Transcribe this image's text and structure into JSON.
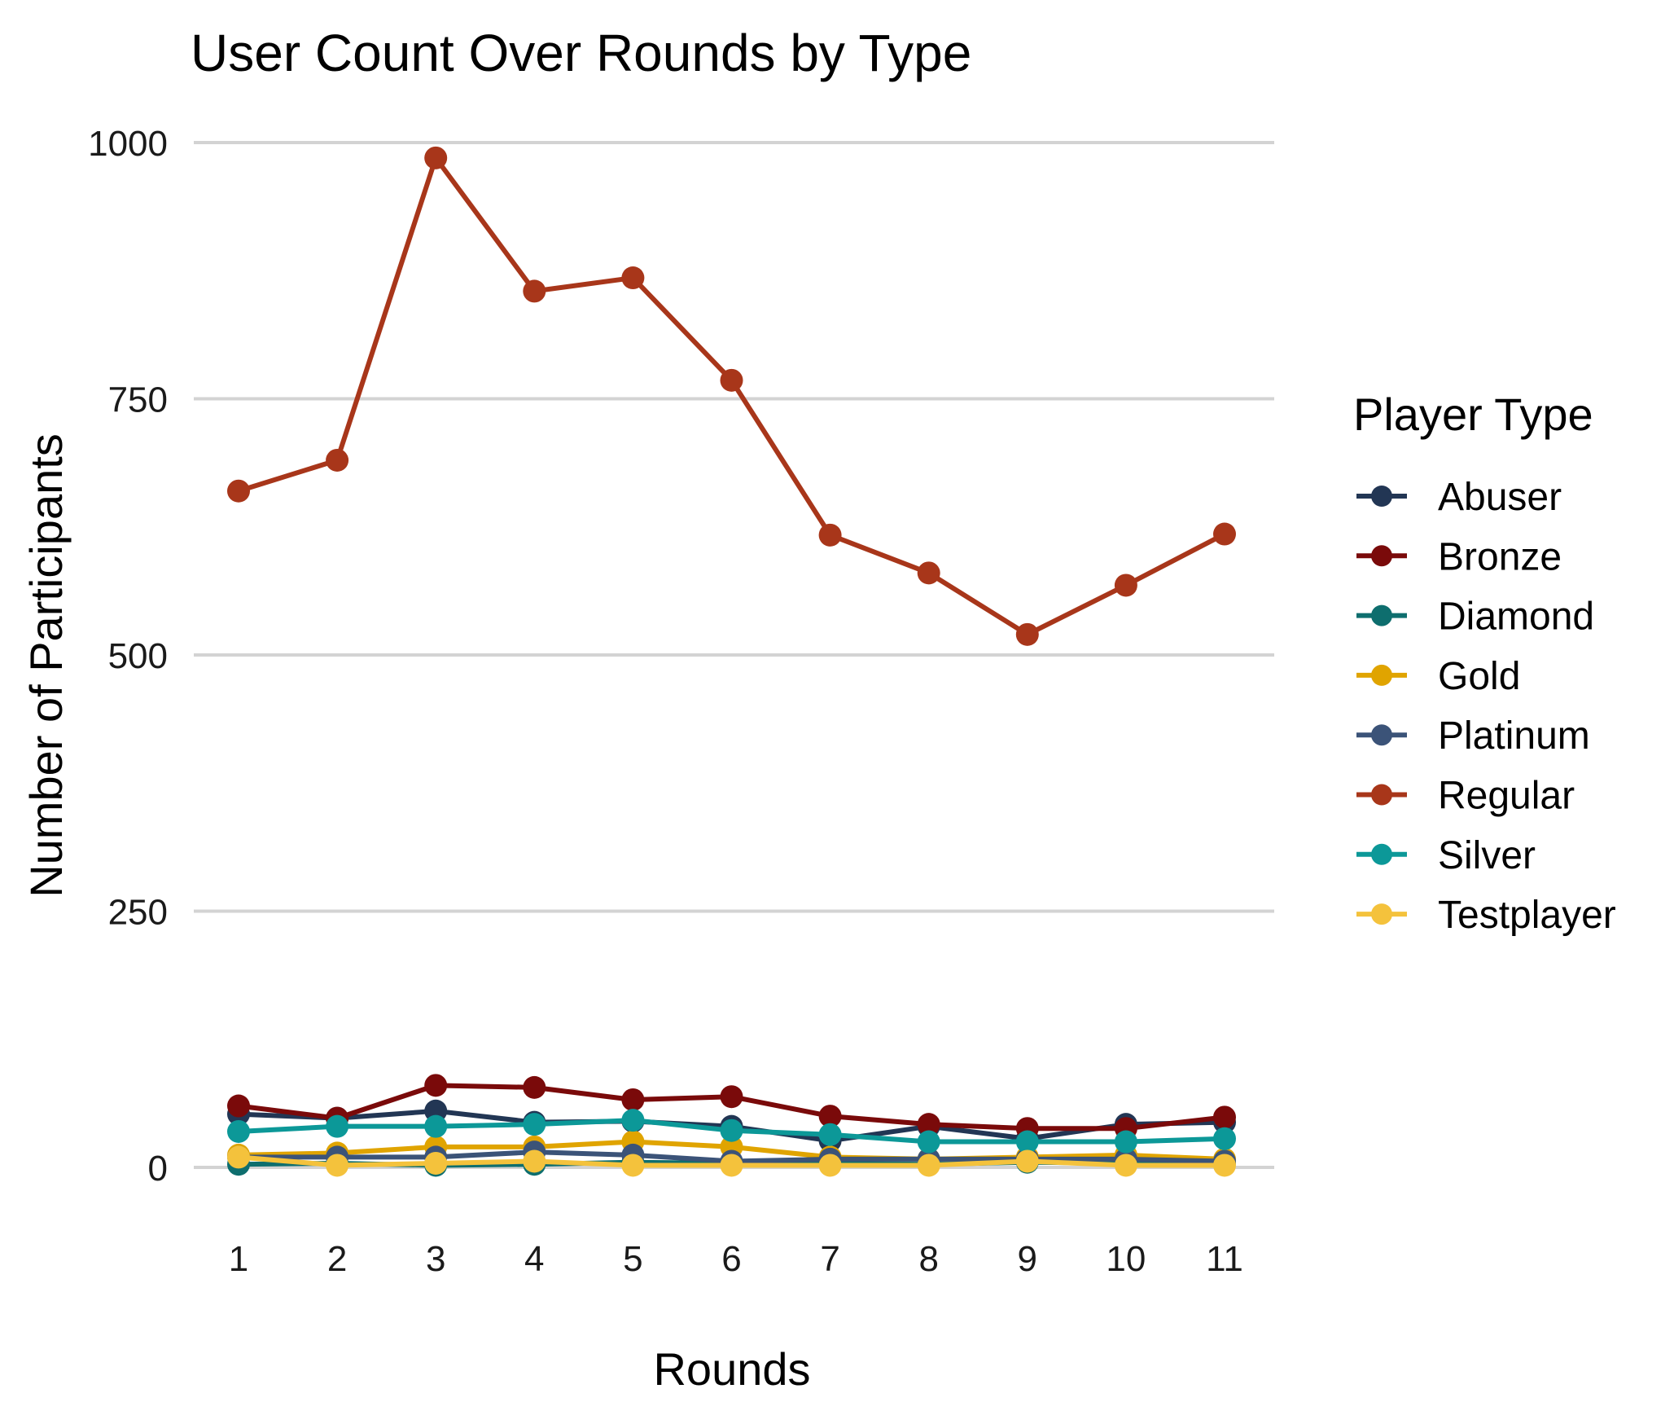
{
  "chart_data": {
    "type": "line",
    "title": "User Count Over Rounds by Type",
    "xlabel": "Rounds",
    "ylabel": "Number of Participants",
    "x": [
      1,
      2,
      3,
      4,
      5,
      6,
      7,
      8,
      9,
      10,
      11
    ],
    "x_tick_labels": [
      "1",
      "2",
      "3",
      "4",
      "5",
      "6",
      "7",
      "8",
      "9",
      "10",
      "11"
    ],
    "ylim": [
      -45,
      1055
    ],
    "y_ticks": [
      0,
      250,
      500,
      750,
      1000
    ],
    "y_tick_labels": [
      "0",
      "250",
      "500",
      "750",
      "1000"
    ],
    "grid": "horizontal major",
    "legend_title": "Player Type",
    "legend_position": "right",
    "series": [
      {
        "name": "Abuser",
        "color": "#223654",
        "values": [
          52,
          48,
          55,
          44,
          45,
          40,
          26,
          40,
          28,
          42,
          44
        ]
      },
      {
        "name": "Bronze",
        "color": "#7a0a0a",
        "values": [
          60,
          48,
          80,
          78,
          66,
          69,
          50,
          42,
          38,
          38,
          49
        ]
      },
      {
        "name": "Diamond",
        "color": "#0e6e6e",
        "values": [
          3,
          4,
          2,
          3,
          5,
          4,
          4,
          3,
          5,
          4,
          4
        ]
      },
      {
        "name": "Gold",
        "color": "#e0a400",
        "values": [
          12,
          14,
          20,
          20,
          25,
          20,
          10,
          8,
          10,
          12,
          8
        ]
      },
      {
        "name": "Platinum",
        "color": "#3b5378",
        "values": [
          10,
          10,
          10,
          15,
          12,
          6,
          8,
          8,
          8,
          8,
          6
        ]
      },
      {
        "name": "Regular",
        "color": "#a8361a",
        "values": [
          660,
          690,
          985,
          855,
          868,
          768,
          617,
          580,
          520,
          568,
          618
        ]
      },
      {
        "name": "Silver",
        "color": "#0c9898",
        "values": [
          35,
          40,
          40,
          42,
          46,
          36,
          32,
          25,
          25,
          25,
          28
        ]
      },
      {
        "name": "Testplayer",
        "color": "#f4c23c",
        "values": [
          10,
          2,
          4,
          6,
          2,
          2,
          2,
          2,
          6,
          2,
          2
        ]
      }
    ]
  }
}
